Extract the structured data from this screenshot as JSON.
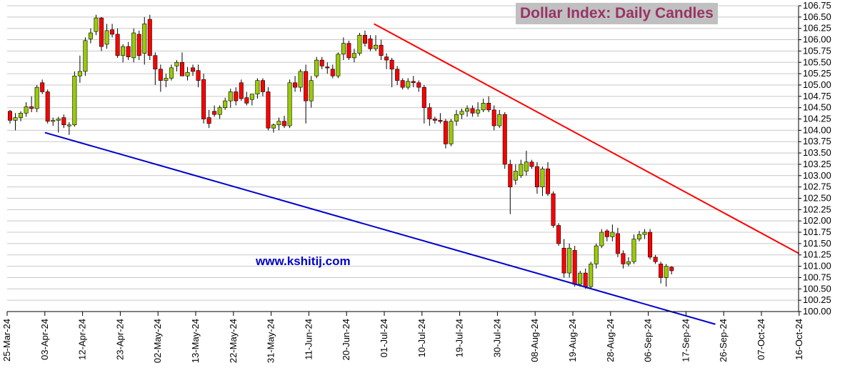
{
  "chart_data": {
    "type": "candlestick",
    "title": "Dollar Index: Daily Candles",
    "watermark": "www.kshitij.com",
    "ylim": [
      100.0,
      106.75
    ],
    "y_ticks": [
      "100.00",
      "100.25",
      "100.50",
      "100.75",
      "101.00",
      "101.25",
      "101.50",
      "101.75",
      "102.00",
      "102.25",
      "102.50",
      "102.75",
      "103.00",
      "103.25",
      "103.50",
      "103.75",
      "104.00",
      "104.25",
      "104.50",
      "104.75",
      "105.00",
      "105.25",
      "105.50",
      "105.75",
      "106.00",
      "106.25",
      "106.50",
      "106.75"
    ],
    "x_ticks": [
      "25-Mar-24",
      "03-Apr-24",
      "12-Apr-24",
      "23-Apr-24",
      "02-May-24",
      "13-May-24",
      "22-May-24",
      "31-May-24",
      "11-Jun-24",
      "20-Jun-24",
      "01-Jul-24",
      "10-Jul-24",
      "19-Jul-24",
      "30-Jul-24",
      "08-Aug-24",
      "19-Aug-24",
      "28-Aug-24",
      "06-Sep-24",
      "17-Sep-24",
      "26-Sep-24",
      "07-Oct-24",
      "16-Oct-24"
    ],
    "up_color": "#99cc00",
    "down_color": "#ff0000",
    "candles": [
      {
        "o": 104.42,
        "h": 104.45,
        "l": 104.15,
        "c": 104.22
      },
      {
        "o": 104.22,
        "h": 104.38,
        "l": 104.0,
        "c": 104.28
      },
      {
        "o": 104.28,
        "h": 104.42,
        "l": 104.2,
        "c": 104.38
      },
      {
        "o": 104.38,
        "h": 104.62,
        "l": 104.3,
        "c": 104.52
      },
      {
        "o": 104.52,
        "h": 104.75,
        "l": 104.4,
        "c": 104.48
      },
      {
        "o": 104.48,
        "h": 105.0,
        "l": 104.4,
        "c": 104.95
      },
      {
        "o": 105.05,
        "h": 105.12,
        "l": 104.8,
        "c": 104.85
      },
      {
        "o": 104.85,
        "h": 104.9,
        "l": 104.15,
        "c": 104.2
      },
      {
        "o": 104.2,
        "h": 104.28,
        "l": 104.1,
        "c": 104.22
      },
      {
        "o": 104.22,
        "h": 104.3,
        "l": 103.95,
        "c": 104.25
      },
      {
        "o": 104.28,
        "h": 104.35,
        "l": 104.05,
        "c": 104.12
      },
      {
        "o": 104.1,
        "h": 104.18,
        "l": 103.9,
        "c": 104.12
      },
      {
        "o": 104.12,
        "h": 105.3,
        "l": 104.08,
        "c": 105.2
      },
      {
        "o": 105.2,
        "h": 105.65,
        "l": 105.05,
        "c": 105.3
      },
      {
        "o": 105.3,
        "h": 106.05,
        "l": 105.2,
        "c": 105.98
      },
      {
        "o": 106.02,
        "h": 106.25,
        "l": 105.92,
        "c": 106.15
      },
      {
        "o": 106.18,
        "h": 106.55,
        "l": 106.1,
        "c": 106.48
      },
      {
        "o": 106.48,
        "h": 106.5,
        "l": 105.75,
        "c": 105.85
      },
      {
        "o": 105.9,
        "h": 106.35,
        "l": 105.8,
        "c": 106.2
      },
      {
        "o": 106.22,
        "h": 106.35,
        "l": 106.05,
        "c": 106.12
      },
      {
        "o": 106.12,
        "h": 106.25,
        "l": 105.6,
        "c": 105.65
      },
      {
        "o": 105.65,
        "h": 105.9,
        "l": 105.5,
        "c": 105.85
      },
      {
        "o": 105.85,
        "h": 105.95,
        "l": 105.55,
        "c": 105.62
      },
      {
        "o": 105.6,
        "h": 106.25,
        "l": 105.5,
        "c": 106.15
      },
      {
        "o": 106.12,
        "h": 106.2,
        "l": 105.55,
        "c": 105.65
      },
      {
        "o": 105.7,
        "h": 106.5,
        "l": 105.45,
        "c": 106.35
      },
      {
        "o": 106.45,
        "h": 106.55,
        "l": 105.55,
        "c": 105.65
      },
      {
        "o": 105.65,
        "h": 105.72,
        "l": 105.0,
        "c": 105.35
      },
      {
        "o": 105.35,
        "h": 105.45,
        "l": 104.85,
        "c": 105.1
      },
      {
        "o": 105.1,
        "h": 105.25,
        "l": 104.95,
        "c": 105.15
      },
      {
        "o": 105.15,
        "h": 105.45,
        "l": 105.1,
        "c": 105.38
      },
      {
        "o": 105.42,
        "h": 105.55,
        "l": 105.3,
        "c": 105.5
      },
      {
        "o": 105.5,
        "h": 105.72,
        "l": 105.2,
        "c": 105.2
      },
      {
        "o": 105.2,
        "h": 105.4,
        "l": 105.1,
        "c": 105.28
      },
      {
        "o": 105.38,
        "h": 105.45,
        "l": 105.2,
        "c": 105.3
      },
      {
        "o": 105.32,
        "h": 105.45,
        "l": 104.95,
        "c": 105.1
      },
      {
        "o": 105.12,
        "h": 105.25,
        "l": 104.15,
        "c": 104.25
      },
      {
        "o": 104.28,
        "h": 104.45,
        "l": 104.05,
        "c": 104.15
      },
      {
        "o": 104.42,
        "h": 104.55,
        "l": 104.3,
        "c": 104.35
      },
      {
        "o": 104.35,
        "h": 104.55,
        "l": 104.25,
        "c": 104.5
      },
      {
        "o": 104.5,
        "h": 104.72,
        "l": 104.45,
        "c": 104.65
      },
      {
        "o": 104.65,
        "h": 104.92,
        "l": 104.5,
        "c": 104.85
      },
      {
        "o": 104.85,
        "h": 104.95,
        "l": 104.55,
        "c": 104.65
      },
      {
        "o": 105.05,
        "h": 105.12,
        "l": 104.65,
        "c": 104.7
      },
      {
        "o": 104.72,
        "h": 104.85,
        "l": 104.55,
        "c": 104.6
      },
      {
        "o": 104.68,
        "h": 104.8,
        "l": 104.55,
        "c": 104.8
      },
      {
        "o": 104.8,
        "h": 105.15,
        "l": 104.7,
        "c": 105.1
      },
      {
        "o": 105.1,
        "h": 105.15,
        "l": 104.75,
        "c": 104.85
      },
      {
        "o": 104.85,
        "h": 104.95,
        "l": 104.0,
        "c": 104.05
      },
      {
        "o": 104.05,
        "h": 104.15,
        "l": 103.95,
        "c": 104.12
      },
      {
        "o": 104.12,
        "h": 104.28,
        "l": 104.0,
        "c": 104.2
      },
      {
        "o": 104.2,
        "h": 104.32,
        "l": 104.05,
        "c": 104.1
      },
      {
        "o": 104.1,
        "h": 105.12,
        "l": 104.05,
        "c": 105.05
      },
      {
        "o": 105.05,
        "h": 105.2,
        "l": 104.85,
        "c": 104.95
      },
      {
        "o": 104.95,
        "h": 105.35,
        "l": 104.85,
        "c": 105.3
      },
      {
        "o": 105.3,
        "h": 105.45,
        "l": 104.15,
        "c": 104.65
      },
      {
        "o": 104.65,
        "h": 105.2,
        "l": 104.5,
        "c": 105.1
      },
      {
        "o": 105.2,
        "h": 105.62,
        "l": 105.15,
        "c": 105.55
      },
      {
        "o": 105.55,
        "h": 105.62,
        "l": 105.35,
        "c": 105.42
      },
      {
        "o": 105.4,
        "h": 105.5,
        "l": 105.25,
        "c": 105.38
      },
      {
        "o": 105.35,
        "h": 105.45,
        "l": 105.15,
        "c": 105.2
      },
      {
        "o": 105.2,
        "h": 105.72,
        "l": 105.15,
        "c": 105.68
      },
      {
        "o": 105.68,
        "h": 106.05,
        "l": 105.55,
        "c": 105.92
      },
      {
        "o": 105.92,
        "h": 105.98,
        "l": 105.55,
        "c": 105.6
      },
      {
        "o": 105.6,
        "h": 105.8,
        "l": 105.5,
        "c": 105.7
      },
      {
        "o": 105.7,
        "h": 106.15,
        "l": 105.65,
        "c": 106.1
      },
      {
        "o": 106.1,
        "h": 106.2,
        "l": 105.85,
        "c": 105.92
      },
      {
        "o": 106.02,
        "h": 106.1,
        "l": 105.75,
        "c": 105.8
      },
      {
        "o": 105.8,
        "h": 106.1,
        "l": 105.75,
        "c": 105.88
      },
      {
        "o": 105.88,
        "h": 106.0,
        "l": 105.55,
        "c": 105.65
      },
      {
        "o": 105.62,
        "h": 105.7,
        "l": 105.35,
        "c": 105.55
      },
      {
        "o": 105.55,
        "h": 105.6,
        "l": 104.95,
        "c": 105.35
      },
      {
        "o": 105.35,
        "h": 105.42,
        "l": 105.0,
        "c": 105.1
      },
      {
        "o": 105.1,
        "h": 105.15,
        "l": 104.9,
        "c": 104.95
      },
      {
        "o": 104.95,
        "h": 105.15,
        "l": 104.9,
        "c": 105.08
      },
      {
        "o": 105.08,
        "h": 105.2,
        "l": 104.95,
        "c": 105.05
      },
      {
        "o": 105.05,
        "h": 105.1,
        "l": 104.85,
        "c": 104.95
      },
      {
        "o": 104.95,
        "h": 105.0,
        "l": 104.15,
        "c": 104.5
      },
      {
        "o": 104.5,
        "h": 104.6,
        "l": 104.1,
        "c": 104.25
      },
      {
        "o": 104.25,
        "h": 104.3,
        "l": 104.15,
        "c": 104.22
      },
      {
        "o": 104.22,
        "h": 104.38,
        "l": 104.15,
        "c": 104.2
      },
      {
        "o": 104.2,
        "h": 104.25,
        "l": 103.6,
        "c": 103.7
      },
      {
        "o": 103.7,
        "h": 104.25,
        "l": 103.65,
        "c": 104.2
      },
      {
        "o": 104.2,
        "h": 104.45,
        "l": 104.1,
        "c": 104.35
      },
      {
        "o": 104.35,
        "h": 104.48,
        "l": 104.25,
        "c": 104.42
      },
      {
        "o": 104.42,
        "h": 104.55,
        "l": 104.3,
        "c": 104.48
      },
      {
        "o": 104.48,
        "h": 104.55,
        "l": 104.3,
        "c": 104.38
      },
      {
        "o": 104.38,
        "h": 104.62,
        "l": 104.3,
        "c": 104.45
      },
      {
        "o": 104.45,
        "h": 104.7,
        "l": 104.4,
        "c": 104.6
      },
      {
        "o": 104.6,
        "h": 104.75,
        "l": 104.4,
        "c": 104.45
      },
      {
        "o": 104.45,
        "h": 104.55,
        "l": 104.0,
        "c": 104.1
      },
      {
        "o": 104.1,
        "h": 104.45,
        "l": 104.05,
        "c": 104.35
      },
      {
        "o": 104.35,
        "h": 104.4,
        "l": 103.15,
        "c": 103.25
      },
      {
        "o": 103.25,
        "h": 103.35,
        "l": 102.15,
        "c": 102.75
      },
      {
        "o": 102.9,
        "h": 103.25,
        "l": 102.8,
        "c": 103.1
      },
      {
        "o": 103.0,
        "h": 103.35,
        "l": 102.95,
        "c": 103.25
      },
      {
        "o": 103.1,
        "h": 103.55,
        "l": 103.0,
        "c": 103.3
      },
      {
        "o": 103.3,
        "h": 103.35,
        "l": 103.15,
        "c": 103.2
      },
      {
        "o": 103.2,
        "h": 103.3,
        "l": 102.6,
        "c": 102.75
      },
      {
        "o": 102.75,
        "h": 103.2,
        "l": 102.55,
        "c": 103.15
      },
      {
        "o": 103.15,
        "h": 103.3,
        "l": 102.55,
        "c": 102.6
      },
      {
        "o": 102.6,
        "h": 102.65,
        "l": 101.85,
        "c": 101.9
      },
      {
        "o": 101.9,
        "h": 101.95,
        "l": 101.45,
        "c": 101.5
      },
      {
        "o": 101.4,
        "h": 101.6,
        "l": 100.75,
        "c": 100.85
      },
      {
        "o": 100.85,
        "h": 101.5,
        "l": 100.75,
        "c": 101.4
      },
      {
        "o": 101.35,
        "h": 101.45,
        "l": 100.55,
        "c": 100.6
      },
      {
        "o": 100.6,
        "h": 100.9,
        "l": 100.55,
        "c": 100.85
      },
      {
        "o": 100.85,
        "h": 100.95,
        "l": 100.5,
        "c": 100.55
      },
      {
        "o": 100.55,
        "h": 101.1,
        "l": 100.5,
        "c": 101.05
      },
      {
        "o": 101.05,
        "h": 101.5,
        "l": 100.95,
        "c": 101.45
      },
      {
        "o": 101.45,
        "h": 101.82,
        "l": 101.4,
        "c": 101.75
      },
      {
        "o": 101.78,
        "h": 101.82,
        "l": 101.55,
        "c": 101.65
      },
      {
        "o": 101.65,
        "h": 101.92,
        "l": 101.55,
        "c": 101.75
      },
      {
        "o": 101.72,
        "h": 101.85,
        "l": 101.2,
        "c": 101.28
      },
      {
        "o": 101.28,
        "h": 101.35,
        "l": 100.95,
        "c": 101.05
      },
      {
        "o": 101.05,
        "h": 101.2,
        "l": 101.0,
        "c": 101.1
      },
      {
        "o": 101.1,
        "h": 101.7,
        "l": 101.05,
        "c": 101.6
      },
      {
        "o": 101.6,
        "h": 101.78,
        "l": 101.55,
        "c": 101.7
      },
      {
        "o": 101.7,
        "h": 101.82,
        "l": 101.6,
        "c": 101.75
      },
      {
        "o": 101.75,
        "h": 101.82,
        "l": 101.15,
        "c": 101.2
      },
      {
        "o": 101.2,
        "h": 101.25,
        "l": 101.05,
        "c": 101.1
      },
      {
        "o": 101.05,
        "h": 101.1,
        "l": 100.62,
        "c": 100.75
      },
      {
        "o": 100.75,
        "h": 101.05,
        "l": 100.55,
        "c": 101.0
      },
      {
        "o": 100.98,
        "h": 101.0,
        "l": 100.82,
        "c": 100.9
      }
    ],
    "trendlines": [
      {
        "color": "#ff0000",
        "from": {
          "x": "28-Jun-24",
          "y": 106.35
        },
        "to": {
          "x": "16-Oct-24",
          "y": 101.28
        }
      },
      {
        "color": "#0000cc",
        "from": {
          "x": "03-Apr-24",
          "y": 103.95
        },
        "to": {
          "x": "24-Sep-24",
          "y": 99.72
        }
      }
    ]
  }
}
